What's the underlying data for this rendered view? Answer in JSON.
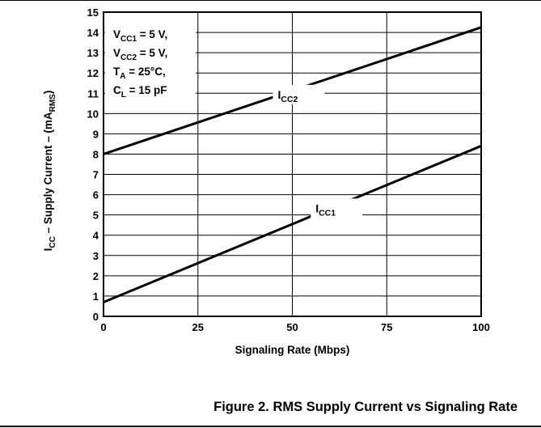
{
  "chart_data": {
    "type": "line",
    "x_ticks": [
      0,
      25,
      50,
      75,
      100
    ],
    "y_ticks": [
      0,
      1,
      2,
      3,
      4,
      5,
      6,
      7,
      8,
      9,
      10,
      11,
      12,
      13,
      14,
      15
    ],
    "xlim": [
      0,
      100
    ],
    "ylim": [
      0,
      15
    ],
    "grid": true,
    "xlabel": "Signaling Rate (Mbps)",
    "ylabel": {
      "pre": "I",
      "sub1": "CC",
      "mid": " – Supply Current – (mA",
      "sub2": "RMS",
      "post": ")"
    },
    "series": [
      {
        "name": "ICC2",
        "label_main": "I",
        "label_sub": "CC2",
        "x": [
          0,
          100
        ],
        "values": [
          8.0,
          14.25
        ]
      },
      {
        "name": "ICC1",
        "label_main": "I",
        "label_sub": "CC1",
        "x": [
          0,
          100
        ],
        "values": [
          0.7,
          8.4
        ]
      }
    ],
    "conditions": [
      {
        "main": "V",
        "sub": "CC1",
        "rest": " = 5 V,"
      },
      {
        "main": "V",
        "sub": "CC2",
        "rest": " = 5 V,"
      },
      {
        "main": "T",
        "sub": "A",
        "rest": " = 25°C,"
      },
      {
        "main": "C",
        "sub": "L",
        "rest": " = 15 pF"
      }
    ]
  },
  "caption": "Figure 2. RMS Supply Current vs Signaling Rate"
}
